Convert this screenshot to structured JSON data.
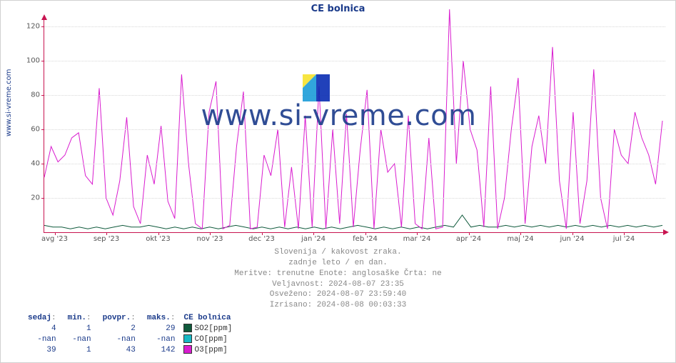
{
  "site_label": "www.si-vreme.com",
  "title": "CE bolnica",
  "watermark_text": "www.si-vreme.com",
  "watermark_icon_colors": {
    "tl": "#f7e32d",
    "bl": "#1b9dd9",
    "right": "#0a2db3"
  },
  "chart": {
    "type": "line",
    "x_axis": {
      "categories": [
        "avg '23",
        "sep '23",
        "okt '23",
        "nov '23",
        "dec '23",
        "jan '24",
        "feb '24",
        "mar '24",
        "apr '24",
        "maj '24",
        "jun '24",
        "jul '24"
      ]
    },
    "y_axis": {
      "min": 0,
      "max": 125,
      "ticks": [
        20,
        40,
        60,
        80,
        100,
        120
      ]
    },
    "grid_color": "#d8d8d8",
    "axis_color": "#c81450",
    "background_color": "#ffffff",
    "series": [
      {
        "name": "SO2[ppm]",
        "color": "#0f5a3c",
        "points": [
          4,
          3,
          3,
          2,
          3,
          2,
          3,
          2,
          3,
          4,
          3,
          3,
          4,
          3,
          2,
          3,
          2,
          3,
          2,
          3,
          2,
          3,
          4,
          3,
          2,
          3,
          2,
          3,
          2,
          3,
          2,
          3,
          2,
          3,
          2,
          3,
          4,
          3,
          2,
          3,
          2,
          3,
          2,
          3,
          2,
          3,
          4,
          3,
          10,
          3,
          4,
          3,
          3,
          4,
          3,
          4,
          3,
          4,
          3,
          4,
          3,
          4,
          3,
          4,
          3,
          4,
          3,
          4,
          3,
          4,
          3,
          4
        ]
      },
      {
        "name": "CO[ppm]",
        "color": "#17b8c4",
        "points": []
      },
      {
        "name": "O3[ppm]",
        "color": "#d91ccf",
        "points": [
          32,
          50,
          41,
          45,
          55,
          58,
          33,
          28,
          84,
          20,
          10,
          30,
          67,
          15,
          5,
          45,
          28,
          62,
          18,
          8,
          92,
          40,
          5,
          2,
          70,
          88,
          2,
          4,
          50,
          82,
          2,
          3,
          45,
          33,
          60,
          3,
          38,
          2,
          68,
          3,
          85,
          2,
          60,
          5,
          69,
          3,
          48,
          83,
          2,
          60,
          35,
          40,
          3,
          68,
          5,
          2,
          55,
          2,
          3,
          130,
          40,
          100,
          60,
          48,
          3,
          85,
          2,
          20,
          60,
          90,
          5,
          50,
          68,
          40,
          108,
          30,
          2,
          70,
          5,
          30,
          95,
          20,
          2,
          60,
          45,
          40,
          70,
          55,
          45,
          28,
          65
        ]
      }
    ]
  },
  "metadata": {
    "line1": "Slovenija / kakovost zraka.",
    "line2": "zadnje leto / en dan.",
    "line3": "Meritve: trenutne  Enote: anglosaške  Črta: ne",
    "line4": "Veljavnost: 2024-08-07 23:35",
    "line5": "Osveženo: 2024-08-07 23:59:40",
    "line6": "Izrisano: 2024-08-08 00:03:33"
  },
  "stats": {
    "headers": {
      "now": "sedaj",
      "min": "min.",
      "avg": "povpr.",
      "max": "maks.",
      "loc": "CE bolnica"
    },
    "rows": [
      {
        "now": "4",
        "min": "1",
        "avg": "2",
        "max": "29",
        "label": "SO2[ppm]",
        "color": "#0f5a3c"
      },
      {
        "now": "-nan",
        "min": "-nan",
        "avg": "-nan",
        "max": "-nan",
        "label": "CO[ppm]",
        "color": "#17b8c4"
      },
      {
        "now": "39",
        "min": "1",
        "avg": "43",
        "max": "142",
        "label": "O3[ppm]",
        "color": "#d91ccf"
      }
    ]
  }
}
